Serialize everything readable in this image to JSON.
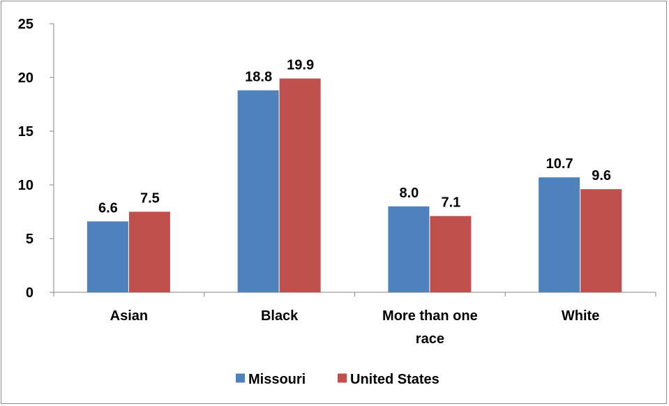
{
  "chart_data": {
    "type": "bar",
    "categories": [
      "Asian",
      "Black",
      "More than one race",
      "White"
    ],
    "category_label_lines": [
      [
        "Asian"
      ],
      [
        "Black"
      ],
      [
        "More than one",
        "race"
      ],
      [
        "White"
      ]
    ],
    "series": [
      {
        "name": "Missouri",
        "color": "#4f81bd",
        "values": [
          6.6,
          18.8,
          8.0,
          10.7
        ]
      },
      {
        "name": "United States",
        "color": "#c0504d",
        "values": [
          7.5,
          19.9,
          7.1,
          9.6
        ]
      }
    ],
    "ylim": [
      0,
      25
    ],
    "yticks": [
      0,
      5,
      10,
      15,
      20,
      25
    ],
    "grid": false,
    "legend_position": "bottom",
    "data_labels": true,
    "xlabel": "",
    "ylabel": "",
    "title": ""
  }
}
